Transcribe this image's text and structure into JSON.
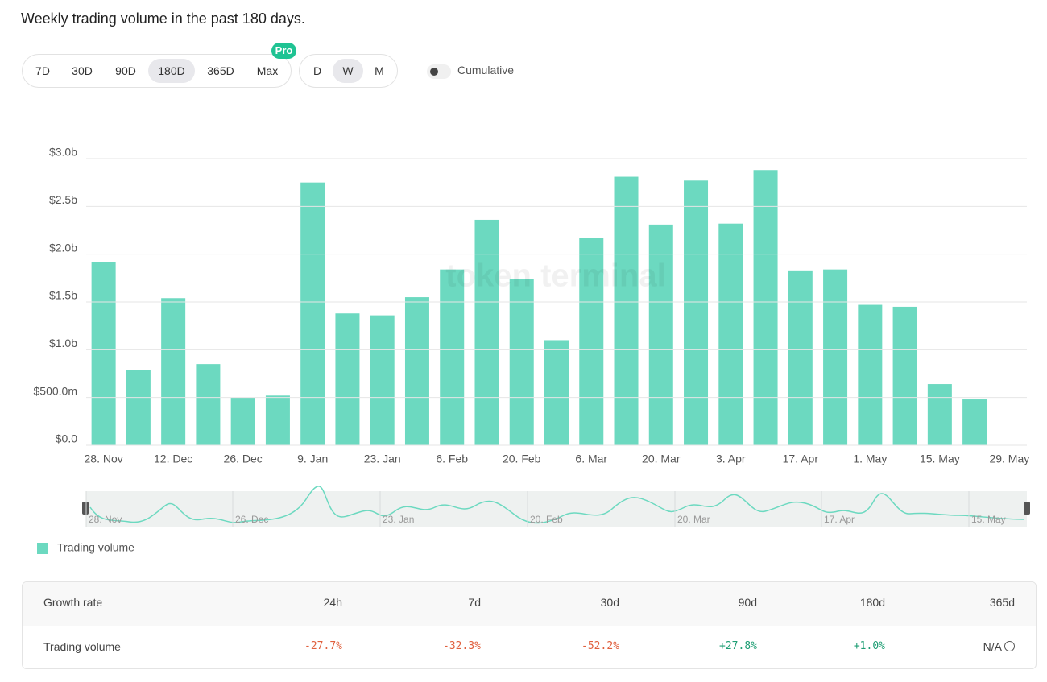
{
  "header": {
    "title": "Weekly trading volume in the past 180 days."
  },
  "controls": {
    "ranges": [
      "7D",
      "30D",
      "90D",
      "180D",
      "365D",
      "Max"
    ],
    "selected_range": "180D",
    "badge": "Pro",
    "granularity": [
      "D",
      "W",
      "M"
    ],
    "selected_granularity": "W",
    "toggle": "Cumulative"
  },
  "watermark": "token terminal",
  "chart_data": {
    "type": "bar",
    "categories": [
      "28. Nov",
      null,
      "12. Dec",
      null,
      "26. Dec",
      null,
      "9. Jan",
      null,
      "23. Jan",
      null,
      "6. Feb",
      null,
      "20. Feb",
      null,
      "6. Mar",
      null,
      "20. Mar",
      null,
      "3. Apr",
      null,
      "17. Apr",
      null,
      "1. May",
      null,
      "15. May",
      null,
      "29. May"
    ],
    "series": [
      {
        "name": "Trading volume",
        "color": "#6cd9c0",
        "values": [
          1.92,
          0.79,
          1.54,
          0.85,
          0.5,
          0.52,
          2.75,
          1.38,
          1.36,
          1.55,
          1.84,
          2.36,
          1.74,
          1.1,
          2.17,
          2.81,
          2.31,
          2.77,
          2.32,
          2.88,
          1.83,
          1.84,
          1.47,
          1.45,
          0.64,
          0.48,
          null
        ]
      }
    ],
    "ylim": [
      0,
      3
    ],
    "yticks": [
      {
        "value": 0,
        "label": "$0.0"
      },
      {
        "value": 0.5,
        "label": "$500.0m"
      },
      {
        "value": 1,
        "label": "$1.0b"
      },
      {
        "value": 1.5,
        "label": "$1.5b"
      },
      {
        "value": 2,
        "label": "$2.0b"
      },
      {
        "value": 2.5,
        "label": "$2.5b"
      },
      {
        "value": 3,
        "label": "$3.0b"
      }
    ],
    "grid": true
  },
  "navigator": {
    "labels": [
      "28. Nov",
      "26. Dec",
      "23. Jan",
      "20. Feb",
      "20. Mar",
      "17. Apr",
      "15. May"
    ]
  },
  "table": {
    "header": [
      "Growth rate",
      "24h",
      "7d",
      "30d",
      "90d",
      "180d",
      "365d"
    ],
    "rows": [
      [
        "Trading volume",
        "-27.7%",
        "-32.3%",
        "-52.2%",
        "+27.8%",
        "+1.0%",
        "N/A"
      ]
    ]
  }
}
